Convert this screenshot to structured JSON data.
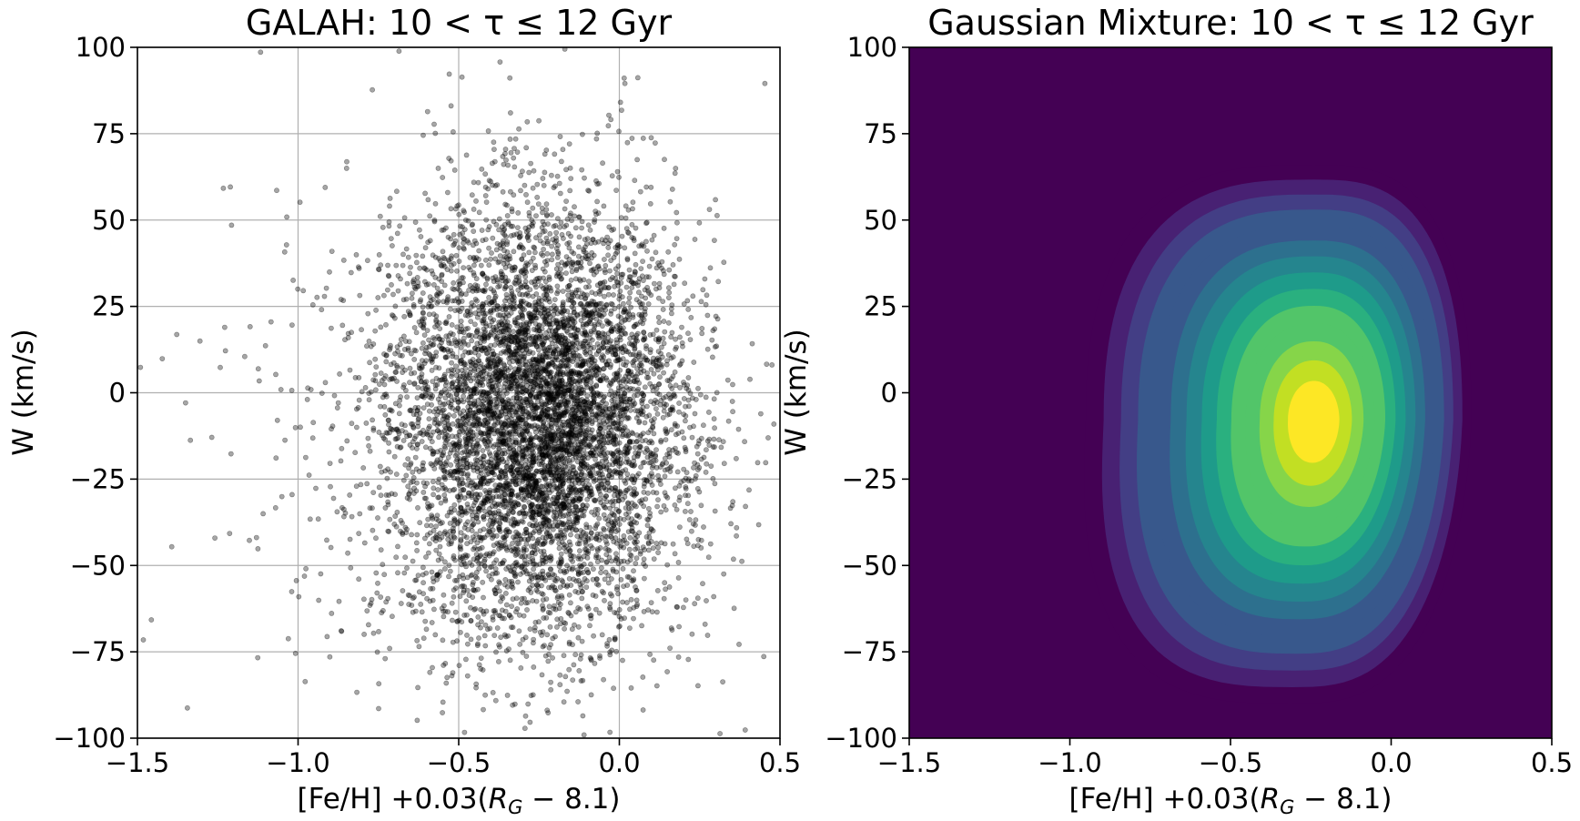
{
  "chart_data": [
    {
      "type": "scatter",
      "title": "GALAH: 10 < τ ≤ 12 Gyr",
      "xlabel": "[Fe/H] +0.03(R_G − 8.1)",
      "ylabel": "W (km/s)",
      "xlim": [
        -1.5,
        0.5
      ],
      "ylim": [
        -100,
        100
      ],
      "xticks": [
        -1.5,
        -1.0,
        -0.5,
        0.0,
        0.5
      ],
      "xtick_labels": [
        "−1.5",
        "−1.0",
        "−0.5",
        "0.0",
        "0.5"
      ],
      "yticks": [
        -100,
        -75,
        -50,
        -25,
        0,
        25,
        50,
        75,
        100
      ],
      "ytick_labels": [
        "−100",
        "−75",
        "−50",
        "−25",
        "0",
        "25",
        "50",
        "75",
        "100"
      ],
      "grid": true,
      "marker_color": "#000000",
      "marker_alpha": 0.35,
      "point_cloud": {
        "n_points": 7000,
        "center": [
          -0.25,
          -8
        ],
        "spread": [
          0.22,
          30
        ],
        "note_visible": false
      }
    },
    {
      "type": "heatmap",
      "title": "Gaussian Mixture: 10 < τ ≤ 12 Gyr",
      "xlabel": "[Fe/H] +0.03(R_G − 8.1)",
      "ylabel": "W (km/s)",
      "xlim": [
        -1.5,
        0.5
      ],
      "ylim": [
        -100,
        100
      ],
      "xticks": [
        -1.5,
        -1.0,
        -0.5,
        0.0,
        0.5
      ],
      "xtick_labels": [
        "−1.5",
        "−1.0",
        "−0.5",
        "0.0",
        "0.5"
      ],
      "yticks": [
        -100,
        -75,
        -50,
        -25,
        0,
        25,
        50,
        75,
        100
      ],
      "ytick_labels": [
        "−100",
        "−75",
        "−50",
        "−25",
        "0",
        "25",
        "50",
        "75",
        "100"
      ],
      "grid": false,
      "colormap": "viridis",
      "background_color": "#440154",
      "peak": [
        -0.24,
        -8
      ],
      "contour_levels": 14
    }
  ]
}
